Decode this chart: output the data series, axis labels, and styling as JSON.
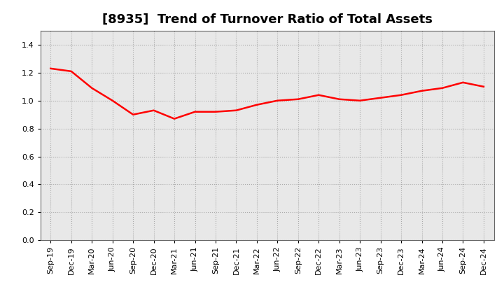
{
  "title": "[8935]  Trend of Turnover Ratio of Total Assets",
  "x_labels": [
    "Sep-19",
    "Dec-19",
    "Mar-20",
    "Jun-20",
    "Sep-20",
    "Dec-20",
    "Mar-21",
    "Jun-21",
    "Sep-21",
    "Dec-21",
    "Mar-22",
    "Jun-22",
    "Sep-22",
    "Dec-22",
    "Mar-23",
    "Jun-23",
    "Sep-23",
    "Dec-23",
    "Mar-24",
    "Jun-24",
    "Sep-24",
    "Dec-24"
  ],
  "y_values": [
    1.23,
    1.21,
    1.09,
    1.0,
    0.9,
    0.93,
    0.87,
    0.92,
    0.92,
    0.93,
    0.97,
    1.0,
    1.01,
    1.04,
    1.01,
    1.0,
    1.02,
    1.04,
    1.07,
    1.09,
    1.13,
    1.1
  ],
  "line_color": "#FF0000",
  "line_width": 1.8,
  "ylim": [
    0.0,
    1.5
  ],
  "yticks": [
    0.0,
    0.2,
    0.4,
    0.6,
    0.8,
    1.0,
    1.2,
    1.4
  ],
  "grid_color": "#aaaaaa",
  "grid_style": "dotted",
  "bg_color": "#ffffff",
  "plot_bg_color": "#e8e8e8",
  "title_fontsize": 13,
  "tick_fontsize": 8
}
